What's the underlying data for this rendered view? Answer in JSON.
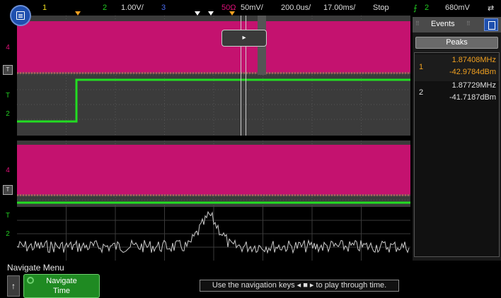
{
  "topbar": {
    "ch1_num": "1",
    "ch2_num": "2",
    "ch2_scale": "1.00V/",
    "ch3_num": "3",
    "ch4_impedance": "50Ω",
    "ch4_scale": "50mV/",
    "timebase": "200.0us/",
    "delay": "17.00ms/",
    "run_state": "Stop",
    "trigger_source": "2",
    "trigger_level": "680mV"
  },
  "channel_labels": {
    "upper_ch4": "4",
    "upper_ch_t": "T",
    "upper_ch2": "2",
    "lower_ch4": "4",
    "lower_ch_t": "T",
    "lower_ch2": "2"
  },
  "events": {
    "title": "Events",
    "tab": "Peaks",
    "peaks": [
      {
        "index": "1",
        "freq": "1.87408MHz",
        "power": "-42.9784dBm",
        "color": "#f0a020"
      },
      {
        "index": "2",
        "freq": "1.87729MHz",
        "power": "-41.7187dBm",
        "color": "#e0e0e0"
      }
    ]
  },
  "nav_box": {
    "label": "▸"
  },
  "bottom": {
    "menu_title": "Navigate Menu",
    "up_label": "↑",
    "nav_line1": "Navigate",
    "nav_line2": "Time",
    "hint": "Use the navigation keys ◂ ■ ▸ to play through time."
  },
  "colors": {
    "ch1": "#f0e020",
    "ch2": "#22cc22",
    "ch3": "#4a6cf0",
    "ch4": "#e0107a",
    "trace_magenta": "#c4126f",
    "trace_green": "#22dd22",
    "fft_trace": "#cccccc"
  }
}
